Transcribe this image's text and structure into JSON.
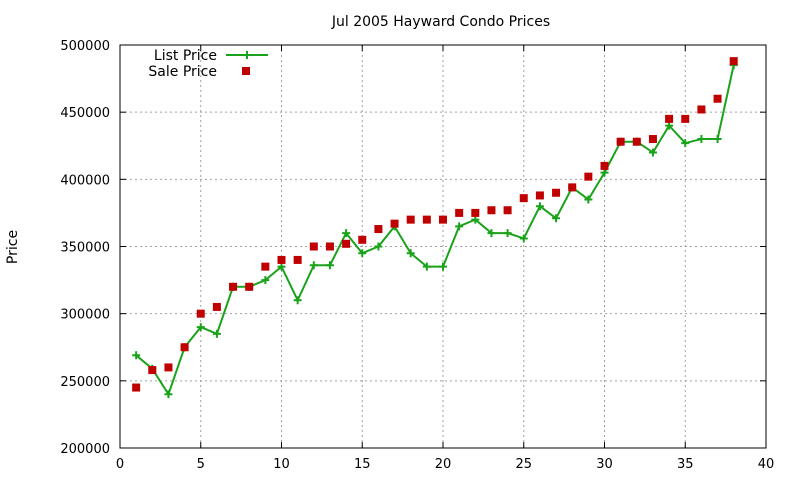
{
  "chart_data": {
    "type": "line",
    "title": "Jul 2005 Hayward Condo Prices",
    "xlabel": "",
    "ylabel": "Price",
    "xlim": [
      0,
      40
    ],
    "ylim": [
      200000,
      500000
    ],
    "x_ticks": [
      0,
      5,
      10,
      15,
      20,
      25,
      30,
      35,
      40
    ],
    "y_ticks": [
      200000,
      250000,
      300000,
      350000,
      400000,
      450000,
      500000
    ],
    "grid": true,
    "legend_position": "top-left",
    "series": [
      {
        "name": "List Price",
        "style": "linespoints",
        "marker": "plus",
        "color": "#1aa31a",
        "x": [
          1,
          2,
          3,
          4,
          5,
          6,
          7,
          8,
          9,
          10,
          11,
          12,
          13,
          14,
          15,
          16,
          17,
          18,
          19,
          20,
          21,
          22,
          23,
          24,
          25,
          26,
          27,
          28,
          29,
          30,
          31,
          32,
          33,
          34,
          35,
          36,
          37,
          38
        ],
        "y": [
          269000,
          259000,
          240000,
          275000,
          290000,
          285000,
          320000,
          320000,
          325000,
          335000,
          310000,
          336000,
          336000,
          360000,
          345000,
          350000,
          365000,
          345000,
          335000,
          335000,
          365000,
          370000,
          360000,
          360000,
          356000,
          380000,
          371000,
          394000,
          385000,
          405000,
          428000,
          428000,
          420000,
          440000,
          427000,
          430000,
          430000,
          485000
        ]
      },
      {
        "name": "Sale Price",
        "style": "points",
        "marker": "square",
        "color": "#c00000",
        "x": [
          1,
          2,
          3,
          4,
          5,
          6,
          7,
          8,
          9,
          10,
          11,
          12,
          13,
          14,
          15,
          16,
          17,
          18,
          19,
          20,
          21,
          22,
          23,
          24,
          25,
          26,
          27,
          28,
          29,
          30,
          31,
          32,
          33,
          34,
          35,
          36,
          37,
          38
        ],
        "y": [
          245000,
          258000,
          260000,
          275000,
          300000,
          305000,
          320000,
          320000,
          335000,
          340000,
          340000,
          350000,
          350000,
          352000,
          355000,
          363000,
          367000,
          370000,
          370000,
          370000,
          375000,
          375000,
          377000,
          377000,
          386000,
          388000,
          390000,
          394000,
          402000,
          410000,
          428000,
          428000,
          430000,
          445000,
          445000,
          452000,
          460000,
          488000
        ]
      }
    ]
  }
}
